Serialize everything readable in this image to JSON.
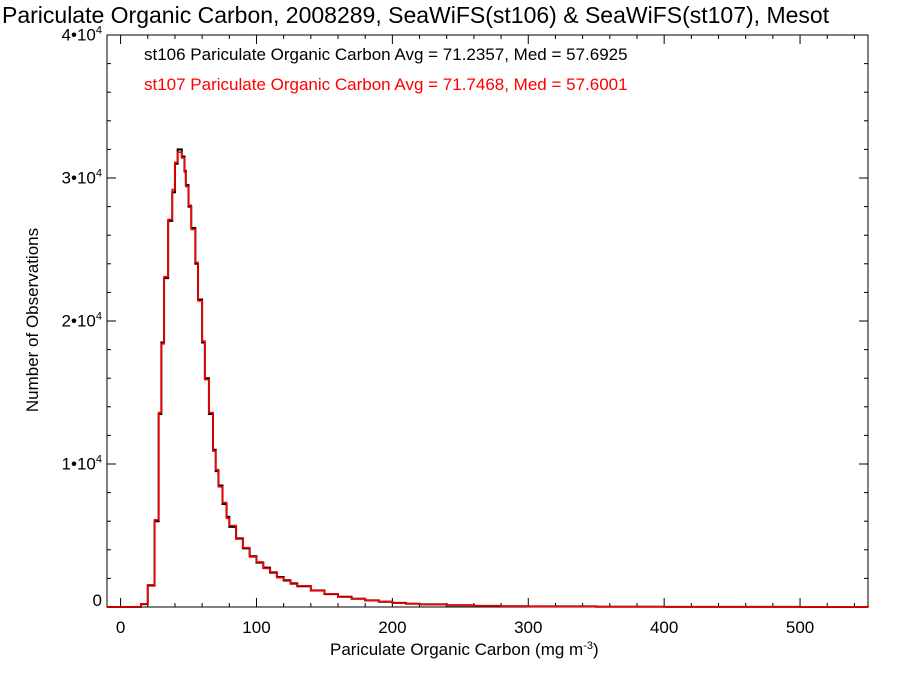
{
  "chart_data": {
    "type": "line",
    "title": "Pariculate Organic Carbon, 2008289, SeaWiFS(st106) & SeaWiFS(st107), Mesot",
    "xlabel_text": "Pariculate Organic Carbon (mg m",
    "xlabel_sup": "-3",
    "xlabel_close": ")",
    "ylabel": "Number of Observations",
    "xlim": [
      -10,
      550
    ],
    "ylim": [
      0,
      40000
    ],
    "xticks": [
      "0",
      "100",
      "200",
      "300",
      "400",
      "500"
    ],
    "xtick_values": [
      0,
      100,
      200,
      300,
      400,
      500
    ],
    "yticks": [
      {
        "value": 0,
        "base": "0",
        "exp": ""
      },
      {
        "value": 10000,
        "base": "1•10",
        "exp": "4"
      },
      {
        "value": 20000,
        "base": "2•10",
        "exp": "4"
      },
      {
        "value": 30000,
        "base": "3•10",
        "exp": "4"
      },
      {
        "value": 40000,
        "base": "4•10",
        "exp": "4"
      }
    ],
    "x": [
      0,
      5,
      10,
      15,
      20,
      25,
      28,
      30,
      32,
      35,
      38,
      40,
      42,
      45,
      47,
      48,
      50,
      52,
      55,
      57,
      60,
      62,
      65,
      68,
      70,
      72,
      75,
      78,
      80,
      85,
      90,
      95,
      100,
      105,
      110,
      115,
      120,
      125,
      130,
      140,
      150,
      160,
      170,
      180,
      190,
      200,
      210,
      220,
      240,
      260,
      280,
      300,
      350,
      400,
      450,
      500,
      550
    ],
    "series": [
      {
        "name": "st106",
        "legend": "st106 Pariculate Organic Carbon Avg = 71.2357, Med = 57.6925",
        "color": "#000000",
        "values": [
          0,
          0,
          0,
          200,
          1500,
          6000,
          13500,
          18500,
          23000,
          27000,
          29000,
          31000,
          32000,
          31500,
          30500,
          29500,
          28000,
          26500,
          24000,
          21500,
          18500,
          16000,
          13500,
          11000,
          9500,
          8500,
          7200,
          6300,
          5600,
          4800,
          4100,
          3550,
          3100,
          2750,
          2400,
          2100,
          1850,
          1650,
          1450,
          1150,
          900,
          720,
          580,
          460,
          370,
          290,
          230,
          180,
          120,
          80,
          55,
          40,
          20,
          10,
          5,
          2,
          0
        ]
      },
      {
        "name": "st107",
        "legend": "st107 Pariculate Organic Carbon Avg = 71.7468, Med = 57.6001",
        "color": "#ff0000",
        "values": [
          0,
          0,
          0,
          220,
          1550,
          6100,
          13600,
          18400,
          23100,
          27100,
          29200,
          31100,
          31800,
          31400,
          30400,
          29400,
          28100,
          26400,
          24100,
          21400,
          18600,
          15900,
          13600,
          10900,
          9600,
          8400,
          7300,
          6200,
          5700,
          4750,
          4150,
          3500,
          3150,
          2700,
          2450,
          2050,
          1900,
          1600,
          1480,
          1130,
          920,
          700,
          590,
          450,
          380,
          280,
          235,
          175,
          125,
          78,
          57,
          38,
          21,
          9,
          5,
          2,
          0
        ]
      }
    ]
  }
}
